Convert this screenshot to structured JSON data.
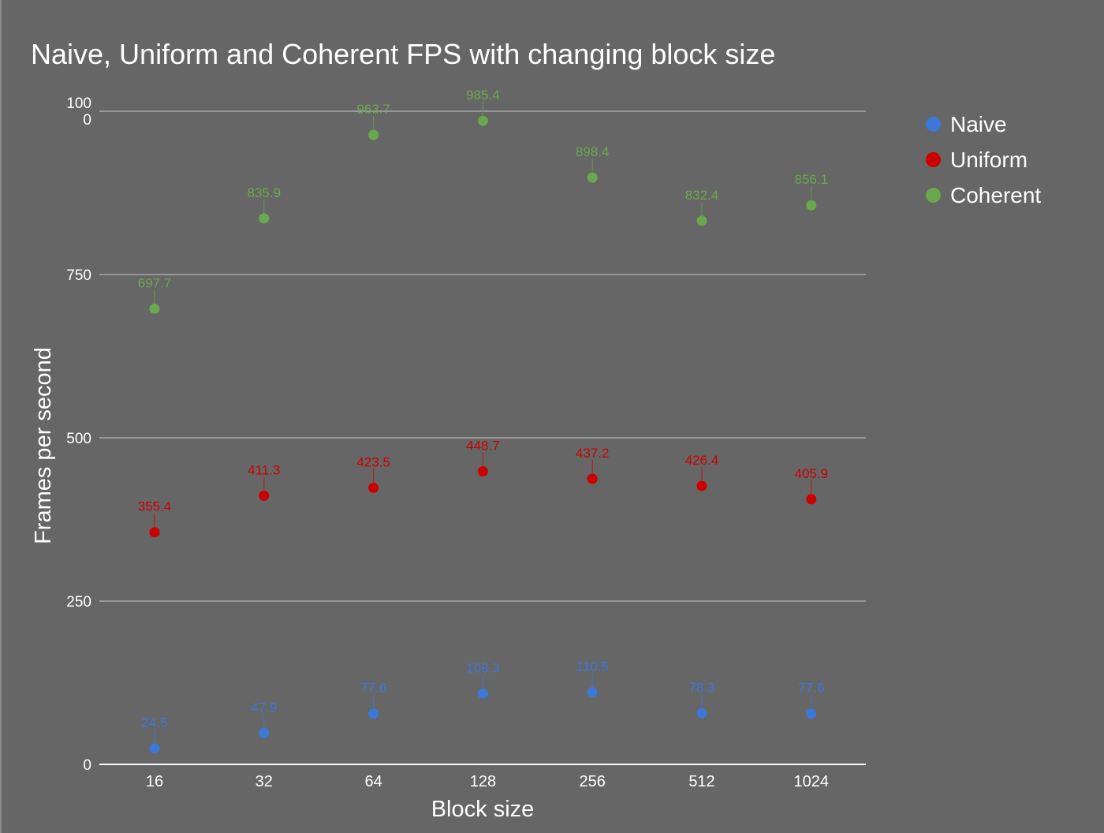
{
  "chart_data": {
    "type": "scatter",
    "title": "Naive, Uniform and Coherent FPS with changing block size",
    "xlabel": "Block size",
    "ylabel": "Frames per second",
    "categories": [
      "16",
      "32",
      "64",
      "128",
      "256",
      "512",
      "1024"
    ],
    "ylim": [
      0,
      1000
    ],
    "yticks": [
      0,
      250,
      500,
      750,
      1000
    ],
    "ytick_labels": [
      "0",
      "250",
      "500",
      "750",
      "100\n0"
    ],
    "grid": true,
    "legend_position": "right",
    "series": [
      {
        "name": "Naive",
        "color": "#3c78d8",
        "values": [
          24.5,
          47.9,
          77.6,
          108.3,
          110.5,
          78.3,
          77.6
        ]
      },
      {
        "name": "Uniform",
        "color": "#cc0000",
        "values": [
          355.4,
          411.3,
          423.5,
          448.7,
          437.2,
          426.4,
          405.9
        ]
      },
      {
        "name": "Coherent",
        "color": "#6aa84f",
        "values": [
          697.7,
          835.9,
          963.7,
          985.4,
          898.4,
          832.4,
          856.1
        ]
      }
    ]
  }
}
